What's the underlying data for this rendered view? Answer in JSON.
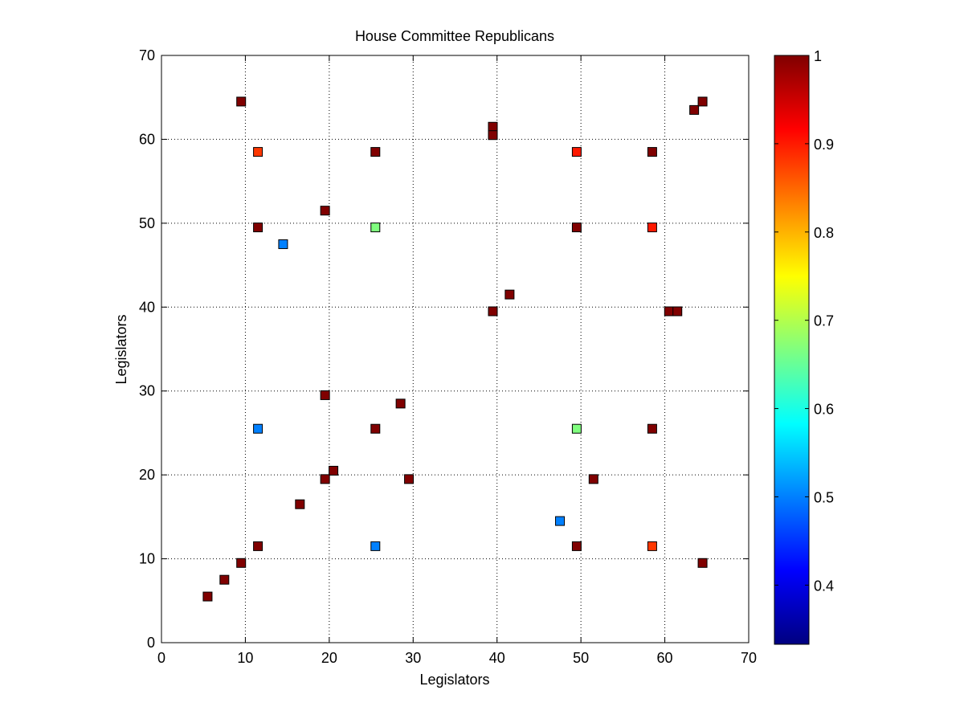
{
  "chart_data": {
    "type": "scatter",
    "title": "House Committee Republicans",
    "xlabel": "Legislators",
    "ylabel": "Legislators",
    "xlim": [
      0,
      70
    ],
    "ylim": [
      0,
      70
    ],
    "xticks": [
      "0",
      "10",
      "20",
      "30",
      "40",
      "50",
      "60",
      "70"
    ],
    "yticks": [
      "0",
      "10",
      "20",
      "30",
      "40",
      "50",
      "60",
      "70"
    ],
    "grid": true,
    "colorbar": {
      "range": [
        0.333,
        1.0
      ],
      "ticks": [
        "0.4",
        "0.5",
        "0.6",
        "0.7",
        "0.8",
        "0.9",
        "1"
      ],
      "tick_values": [
        0.4,
        0.5,
        0.6,
        0.7,
        0.8,
        0.9,
        1.0
      ],
      "colormap": "jet"
    },
    "points": [
      {
        "x": 9.5,
        "y": 64.5,
        "value": 1.0
      },
      {
        "x": 11.5,
        "y": 58.5,
        "value": 0.88
      },
      {
        "x": 25.5,
        "y": 58.5,
        "value": 1.0
      },
      {
        "x": 39.5,
        "y": 61.5,
        "value": 1.0
      },
      {
        "x": 39.5,
        "y": 60.5,
        "value": 1.0
      },
      {
        "x": 49.5,
        "y": 58.5,
        "value": 0.9
      },
      {
        "x": 58.5,
        "y": 58.5,
        "value": 1.0
      },
      {
        "x": 63.5,
        "y": 63.5,
        "value": 1.0
      },
      {
        "x": 64.5,
        "y": 64.5,
        "value": 1.0
      },
      {
        "x": 19.5,
        "y": 51.5,
        "value": 1.0
      },
      {
        "x": 11.5,
        "y": 49.5,
        "value": 1.0
      },
      {
        "x": 14.5,
        "y": 47.5,
        "value": 0.5
      },
      {
        "x": 25.5,
        "y": 49.5,
        "value": 0.667
      },
      {
        "x": 49.5,
        "y": 49.5,
        "value": 1.0
      },
      {
        "x": 58.5,
        "y": 49.5,
        "value": 0.9
      },
      {
        "x": 41.5,
        "y": 41.5,
        "value": 1.0
      },
      {
        "x": 39.5,
        "y": 39.5,
        "value": 1.0
      },
      {
        "x": 60.5,
        "y": 39.5,
        "value": 1.0
      },
      {
        "x": 61.5,
        "y": 39.5,
        "value": 1.0
      },
      {
        "x": 19.5,
        "y": 29.5,
        "value": 1.0
      },
      {
        "x": 28.5,
        "y": 28.5,
        "value": 1.0
      },
      {
        "x": 11.5,
        "y": 25.5,
        "value": 0.5
      },
      {
        "x": 25.5,
        "y": 25.5,
        "value": 1.0
      },
      {
        "x": 49.5,
        "y": 25.5,
        "value": 0.667
      },
      {
        "x": 58.5,
        "y": 25.5,
        "value": 1.0
      },
      {
        "x": 20.5,
        "y": 20.5,
        "value": 1.0
      },
      {
        "x": 19.5,
        "y": 19.5,
        "value": 1.0
      },
      {
        "x": 29.5,
        "y": 19.5,
        "value": 1.0
      },
      {
        "x": 51.5,
        "y": 19.5,
        "value": 1.0
      },
      {
        "x": 16.5,
        "y": 16.5,
        "value": 1.0
      },
      {
        "x": 47.5,
        "y": 14.5,
        "value": 0.5
      },
      {
        "x": 11.5,
        "y": 11.5,
        "value": 1.0
      },
      {
        "x": 25.5,
        "y": 11.5,
        "value": 0.5
      },
      {
        "x": 49.5,
        "y": 11.5,
        "value": 1.0
      },
      {
        "x": 58.5,
        "y": 11.5,
        "value": 0.88
      },
      {
        "x": 9.5,
        "y": 9.5,
        "value": 1.0
      },
      {
        "x": 64.5,
        "y": 9.5,
        "value": 1.0
      },
      {
        "x": 7.5,
        "y": 7.5,
        "value": 1.0
      },
      {
        "x": 5.5,
        "y": 5.5,
        "value": 1.0
      }
    ]
  }
}
